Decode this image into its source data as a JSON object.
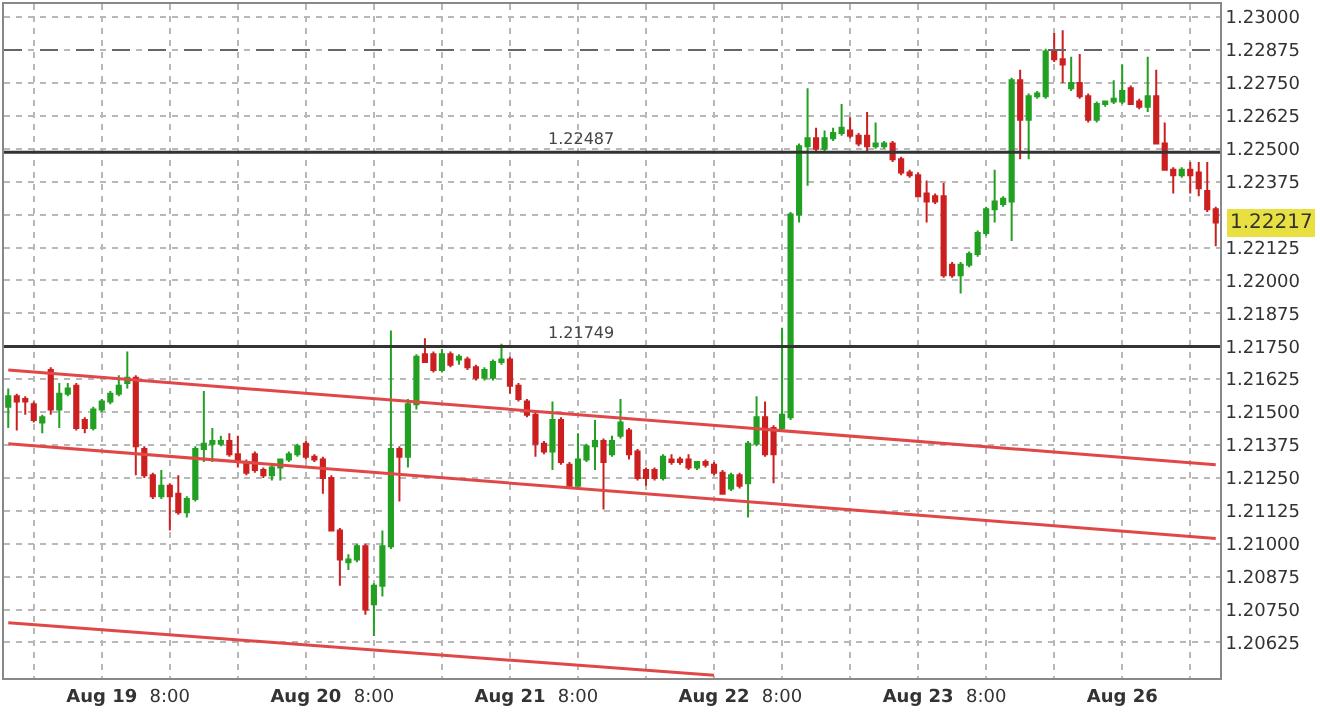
{
  "chart_data": {
    "type": "candlestick",
    "categories": [
      null,
      null,
      null,
      null,
      null,
      null,
      null,
      null,
      null,
      null,
      null,
      "Aug 19",
      null,
      null,
      null,
      null,
      null,
      null,
      null,
      "8:00",
      null,
      null,
      null,
      null,
      null,
      null,
      null,
      null,
      null,
      null,
      null,
      null,
      null,
      null,
      null,
      "Aug 20",
      null,
      null,
      null,
      null,
      null,
      null,
      null,
      "8:00",
      null,
      null,
      null,
      null,
      null,
      null,
      null,
      null,
      null,
      null,
      null,
      null,
      null,
      null,
      null,
      "Aug 21",
      null,
      null,
      null,
      null,
      null,
      null,
      null,
      "8:00",
      null,
      null,
      null,
      null,
      null,
      null,
      null,
      null,
      null,
      null,
      null,
      null,
      null,
      null,
      null,
      "Aug 22",
      null,
      null,
      null,
      null,
      null,
      null,
      null,
      "8:00",
      null,
      null,
      null,
      null,
      null,
      null,
      null,
      null,
      null,
      null,
      null,
      null,
      null,
      null,
      null,
      "Aug 23",
      null,
      null,
      null,
      null,
      null,
      null,
      null,
      "8:00",
      null,
      null,
      null,
      null,
      null,
      null,
      null,
      null,
      null,
      null,
      null,
      null,
      null,
      null,
      null,
      "Aug 26",
      null,
      null,
      null,
      null,
      null,
      null,
      null,
      null,
      null,
      null,
      null
    ],
    "ohlc": [
      [
        1.2152,
        1.2159,
        1.2144,
        1.2156
      ],
      [
        1.2156,
        1.2157,
        1.2143,
        1.2154
      ],
      [
        1.2155,
        1.2156,
        1.2149,
        1.2154
      ],
      [
        1.2153,
        1.2154,
        1.2146,
        1.2147
      ],
      [
        1.2146,
        1.2149,
        1.2142,
        1.2148
      ],
      [
        1.2166,
        1.2167,
        1.2149,
        1.2151
      ],
      [
        1.2151,
        1.2161,
        1.2144,
        1.2157
      ],
      [
        1.2157,
        1.2161,
        1.2156,
        1.2159
      ],
      [
        1.216,
        1.2161,
        1.2143,
        1.2144
      ],
      [
        1.2147,
        1.2148,
        1.2142,
        1.2144
      ],
      [
        1.2144,
        1.2152,
        1.2143,
        1.2151
      ],
      [
        1.2151,
        1.2155,
        1.215,
        1.2154
      ],
      [
        1.2154,
        1.2158,
        1.2153,
        1.2157
      ],
      [
        1.2157,
        1.2164,
        1.2156,
        1.216
      ],
      [
        1.2161,
        1.2173,
        1.2159,
        1.2163
      ],
      [
        1.2163,
        1.2164,
        1.2126,
        1.2137
      ],
      [
        1.2136,
        1.2137,
        1.2125,
        1.2126
      ],
      [
        1.2126,
        1.2127,
        1.2117,
        1.2118
      ],
      [
        1.2118,
        1.2128,
        1.2117,
        1.2122
      ],
      [
        1.2122,
        1.2123,
        1.2105,
        1.2118
      ],
      [
        1.2119,
        1.2126,
        1.2111,
        1.2112
      ],
      [
        1.2112,
        1.2118,
        1.211,
        1.2117
      ],
      [
        1.2117,
        1.2137,
        1.2116,
        1.2136
      ],
      [
        1.2136,
        1.2158,
        1.2131,
        1.2138
      ],
      [
        1.2138,
        1.2144,
        1.2131,
        1.2139
      ],
      [
        1.2138,
        1.2141,
        1.2137,
        1.2139
      ],
      [
        1.2139,
        1.2142,
        1.2133,
        1.2134
      ],
      [
        1.2134,
        1.2141,
        1.2129,
        1.2131
      ],
      [
        1.2131,
        1.2132,
        1.2126,
        1.2127
      ],
      [
        1.2134,
        1.2135,
        1.2127,
        1.2128
      ],
      [
        1.2128,
        1.2129,
        1.2125,
        1.2126
      ],
      [
        1.2126,
        1.213,
        1.2124,
        1.2129
      ],
      [
        1.2129,
        1.2132,
        1.2124,
        1.2132
      ],
      [
        1.2132,
        1.2135,
        1.2131,
        1.2134
      ],
      [
        1.2134,
        1.2138,
        1.2133,
        1.2137
      ],
      [
        1.2138,
        1.2139,
        1.2132,
        1.2133
      ],
      [
        1.2133,
        1.2134,
        1.2131,
        1.2132
      ],
      [
        1.2132,
        1.2133,
        1.2119,
        1.2125
      ],
      [
        1.2125,
        1.2126,
        1.2105,
        1.2105
      ],
      [
        1.2105,
        1.2106,
        1.2084,
        1.2094
      ],
      [
        1.2093,
        1.2096,
        1.209,
        1.2094
      ],
      [
        1.2094,
        1.21,
        1.2093,
        1.2099
      ],
      [
        1.2099,
        1.21,
        1.2073,
        1.2075
      ],
      [
        1.2077,
        1.2085,
        1.2065,
        1.2084
      ],
      [
        1.2084,
        1.2105,
        1.208,
        1.2099
      ],
      [
        1.2099,
        1.2181,
        1.2098,
        1.2136
      ],
      [
        1.2136,
        1.2137,
        1.2116,
        1.2133
      ],
      [
        1.2133,
        1.2155,
        1.2129,
        1.2153
      ],
      [
        1.2153,
        1.2172,
        1.2151,
        1.2171
      ],
      [
        1.2172,
        1.2178,
        1.2169,
        1.2169
      ],
      [
        1.2172,
        1.2173,
        1.2165,
        1.2166
      ],
      [
        1.2166,
        1.2174,
        1.2165,
        1.2172
      ],
      [
        1.2172,
        1.2173,
        1.2167,
        1.2168
      ],
      [
        1.217,
        1.2172,
        1.2168,
        1.2171
      ],
      [
        1.217,
        1.2171,
        1.2166,
        1.2167
      ],
      [
        1.2167,
        1.2168,
        1.2162,
        1.2163
      ],
      [
        1.2163,
        1.2167,
        1.2162,
        1.2166
      ],
      [
        1.2163,
        1.217,
        1.2162,
        1.2169
      ],
      [
        1.2169,
        1.2176,
        1.2168,
        1.217
      ],
      [
        1.217,
        1.2171,
        1.2157,
        1.216
      ],
      [
        1.216,
        1.2161,
        1.2154,
        1.2155
      ],
      [
        1.2154,
        1.2155,
        1.2148,
        1.2149
      ],
      [
        1.2149,
        1.215,
        1.2133,
        1.2138
      ],
      [
        1.2138,
        1.2139,
        1.2134,
        1.2135
      ],
      [
        1.2135,
        1.2154,
        1.2128,
        1.2147
      ],
      [
        1.2147,
        1.2148,
        1.213,
        1.2131
      ],
      [
        1.213,
        1.2131,
        1.2121,
        1.2122
      ],
      [
        1.2122,
        1.2142,
        1.2121,
        1.2132
      ],
      [
        1.2132,
        1.2138,
        1.2131,
        1.2137
      ],
      [
        1.2137,
        1.2147,
        1.2128,
        1.2139
      ],
      [
        1.2139,
        1.214,
        1.2113,
        1.2131
      ],
      [
        1.2134,
        1.2141,
        1.2133,
        1.2139
      ],
      [
        1.2141,
        1.2155,
        1.214,
        1.2146
      ],
      [
        1.2143,
        1.2144,
        1.2132,
        1.2134
      ],
      [
        1.2135,
        1.2136,
        1.2124,
        1.2125
      ],
      [
        1.2128,
        1.2129,
        1.2122,
        1.2125
      ],
      [
        1.2128,
        1.2129,
        1.2124,
        1.2125
      ],
      [
        1.2125,
        1.2134,
        1.2124,
        1.2133
      ],
      [
        1.2132,
        1.2134,
        1.213,
        1.2131
      ],
      [
        1.2132,
        1.2133,
        1.213,
        1.2131
      ],
      [
        1.2132,
        1.2134,
        1.2128,
        1.2129
      ],
      [
        1.2129,
        1.2131,
        1.2128,
        1.2131
      ],
      [
        1.2131,
        1.2132,
        1.2129,
        1.213
      ],
      [
        1.213,
        1.2131,
        1.2126,
        1.2127
      ],
      [
        1.2127,
        1.2128,
        1.2119,
        1.2119
      ],
      [
        1.2121,
        1.2127,
        1.212,
        1.2126
      ],
      [
        1.2126,
        1.2127,
        1.2121,
        1.2122
      ],
      [
        1.2123,
        1.2139,
        1.211,
        1.2138
      ],
      [
        1.2138,
        1.2156,
        1.2137,
        1.2148
      ],
      [
        1.2148,
        1.2154,
        1.2133,
        1.2134
      ],
      [
        1.2144,
        1.2145,
        1.2123,
        1.2134
      ],
      [
        1.2144,
        1.2182,
        1.2143,
        1.2149
      ],
      [
        1.2148,
        1.2226,
        1.2147,
        1.2225
      ],
      [
        1.2225,
        1.2252,
        1.2222,
        1.2251
      ],
      [
        1.2251,
        1.2273,
        1.2236,
        1.2254
      ],
      [
        1.2254,
        1.2258,
        1.2249,
        1.225
      ],
      [
        1.225,
        1.2257,
        1.2249,
        1.2254
      ],
      [
        1.2254,
        1.2258,
        1.2253,
        1.2256
      ],
      [
        1.2256,
        1.2267,
        1.2255,
        1.2258
      ],
      [
        1.2257,
        1.2262,
        1.2254,
        1.2255
      ],
      [
        1.2255,
        1.2256,
        1.2251,
        1.2252
      ],
      [
        1.2255,
        1.2264,
        1.2249,
        1.2251
      ],
      [
        1.2251,
        1.226,
        1.225,
        1.2252
      ],
      [
        1.2251,
        1.2253,
        1.225,
        1.2252
      ],
      [
        1.2252,
        1.2253,
        1.2245,
        1.2246
      ],
      [
        1.2246,
        1.2247,
        1.224,
        1.2241
      ],
      [
        1.2241,
        1.2242,
        1.2239,
        1.224
      ],
      [
        1.224,
        1.2241,
        1.2232,
        1.2232
      ],
      [
        1.2233,
        1.2238,
        1.2222,
        1.223
      ],
      [
        1.2232,
        1.2233,
        1.2229,
        1.223
      ],
      [
        1.2232,
        1.2237,
        1.2201,
        1.2202
      ],
      [
        1.2206,
        1.2207,
        1.2201,
        1.2202
      ],
      [
        1.2202,
        1.2207,
        1.2195,
        1.2206
      ],
      [
        1.2206,
        1.2211,
        1.2205,
        1.221
      ],
      [
        1.221,
        1.2219,
        1.2209,
        1.2218
      ],
      [
        1.2218,
        1.2228,
        1.2217,
        1.2227
      ],
      [
        1.2227,
        1.2242,
        1.2222,
        1.223
      ],
      [
        1.2229,
        1.2232,
        1.2228,
        1.2231
      ],
      [
        1.223,
        1.2277,
        1.2215,
        1.2276
      ],
      [
        1.2276,
        1.228,
        1.2246,
        1.2261
      ],
      [
        1.2261,
        1.2271,
        1.2246,
        1.227
      ],
      [
        1.227,
        1.2272,
        1.2269,
        1.2271
      ],
      [
        1.227,
        1.2288,
        1.2269,
        1.2287
      ],
      [
        1.2287,
        1.2294,
        1.2283,
        1.2284
      ],
      [
        1.2284,
        1.2295,
        1.2275,
        1.2282
      ],
      [
        1.2273,
        1.2285,
        1.2272,
        1.2275
      ],
      [
        1.2275,
        1.2286,
        1.2269,
        1.227
      ],
      [
        1.227,
        1.2271,
        1.226,
        1.2261
      ],
      [
        1.2261,
        1.2268,
        1.226,
        1.2267
      ],
      [
        1.2267,
        1.2268,
        1.2266,
        1.2268
      ],
      [
        1.2268,
        1.2276,
        1.2267,
        1.2269
      ],
      [
        1.2268,
        1.2282,
        1.2267,
        1.2272
      ],
      [
        1.2273,
        1.2274,
        1.2267,
        1.2267
      ],
      [
        1.2268,
        1.2269,
        1.2265,
        1.2266
      ],
      [
        1.2266,
        1.2285,
        1.2264,
        1.227
      ],
      [
        1.227,
        1.228,
        1.2252,
        1.2252
      ],
      [
        1.2252,
        1.226,
        1.2242,
        1.2242
      ],
      [
        1.2242,
        1.2243,
        1.2233,
        1.224
      ],
      [
        1.224,
        1.2243,
        1.2239,
        1.2242
      ],
      [
        1.2242,
        1.2245,
        1.2233,
        1.224
      ],
      [
        1.2241,
        1.2245,
        1.2232,
        1.2235
      ],
      [
        1.2234,
        1.2245,
        1.2226,
        1.2227
      ],
      [
        1.2227,
        1.2228,
        1.2213,
        1.2222
      ]
    ],
    "colors": [
      "#22a022",
      "#cc2020",
      "#cc2020",
      "#cc2020",
      "#22a022",
      "#cc2020",
      "#22a022",
      "#22a022",
      "#cc2020",
      "#cc2020",
      "#22a022",
      "#22a022",
      "#22a022",
      "#22a022",
      "#22a022",
      "#cc2020",
      "#cc2020",
      "#cc2020",
      "#22a022",
      "#cc2020",
      "#cc2020",
      "#22a022",
      "#22a022",
      "#22a022",
      "#22a022",
      "#22a022",
      "#cc2020",
      "#cc2020",
      "#cc2020",
      "#cc2020",
      "#cc2020",
      "#22a022",
      "#22a022",
      "#22a022",
      "#22a022",
      "#cc2020",
      "#cc2020",
      "#cc2020",
      "#cc2020",
      "#cc2020",
      "#22a022",
      "#22a022",
      "#cc2020",
      "#22a022",
      "#22a022",
      "#22a022",
      "#cc2020",
      "#22a022",
      "#22a022",
      "#cc2020",
      "#cc2020",
      "#22a022",
      "#cc2020",
      "#22a022",
      "#cc2020",
      "#cc2020",
      "#22a022",
      "#22a022",
      "#22a022",
      "#cc2020",
      "#cc2020",
      "#cc2020",
      "#cc2020",
      "#cc2020",
      "#22a022",
      "#cc2020",
      "#cc2020",
      "#22a022",
      "#22a022",
      "#22a022",
      "#cc2020",
      "#22a022",
      "#22a022",
      "#cc2020",
      "#cc2020",
      "#cc2020",
      "#cc2020",
      "#22a022",
      "#cc2020",
      "#cc2020",
      "#cc2020",
      "#22a022",
      "#cc2020",
      "#cc2020",
      "#cc2020",
      "#22a022",
      "#cc2020",
      "#22a022",
      "#22a022",
      "#cc2020",
      "#cc2020",
      "#22a022",
      "#22a022",
      "#22a022",
      "#22a022",
      "#cc2020",
      "#22a022",
      "#22a022",
      "#22a022",
      "#cc2020",
      "#cc2020",
      "#cc2020",
      "#22a022",
      "#22a022",
      "#cc2020",
      "#cc2020",
      "#cc2020",
      "#cc2020",
      "#cc2020",
      "#cc2020",
      "#cc2020",
      "#cc2020",
      "#22a022",
      "#22a022",
      "#22a022",
      "#22a022",
      "#22a022",
      "#22a022",
      "#22a022",
      "#cc2020",
      "#22a022",
      "#22a022",
      "#22a022",
      "#cc2020",
      "#cc2020",
      "#22a022",
      "#cc2020",
      "#cc2020",
      "#22a022",
      "#22a022",
      "#22a022",
      "#22a022",
      "#cc2020",
      "#cc2020",
      "#22a022",
      "#cc2020",
      "#cc2020",
      "#cc2020",
      "#22a022",
      "#cc2020",
      "#cc2020",
      "#cc2020",
      "#cc2020"
    ],
    "series": [
      {
        "type": "line",
        "color": "#e04848",
        "values": [
          1.2166,
          null,
          null,
          null,
          null,
          null,
          null,
          null,
          null,
          null,
          null,
          null,
          null,
          null,
          null,
          null,
          null,
          null,
          null,
          null,
          null,
          null,
          null,
          null,
          null,
          null,
          null,
          null,
          null,
          null,
          null,
          null,
          null,
          null,
          null,
          null,
          null,
          null,
          null,
          null,
          null,
          null,
          null,
          null,
          null,
          null,
          null,
          null,
          null,
          null,
          null,
          null,
          null,
          null,
          null,
          null,
          null,
          null,
          null,
          null,
          null,
          null,
          null,
          null,
          null,
          null,
          null,
          null,
          null,
          null,
          null,
          null,
          null,
          null,
          null,
          null,
          null,
          null,
          null,
          null,
          null,
          null,
          null,
          null,
          null,
          null,
          null,
          null,
          null,
          null,
          null,
          null,
          null,
          null,
          null,
          null,
          null,
          null,
          null,
          null,
          null,
          null,
          null,
          null,
          null,
          null,
          null,
          null,
          null,
          null,
          null,
          null,
          null,
          null,
          null,
          null,
          null,
          null,
          null,
          null,
          null,
          null,
          null,
          null,
          null,
          null,
          null,
          null,
          null,
          null,
          null,
          null,
          null,
          null,
          null,
          null,
          null,
          null,
          null,
          null,
          null,
          null,
          1.213
        ]
      },
      {
        "type": "line",
        "color": "#e04848",
        "values": [
          1.2138,
          null,
          null,
          null,
          null,
          null,
          null,
          null,
          null,
          null,
          null,
          null,
          null,
          null,
          null,
          null,
          null,
          null,
          null,
          null,
          null,
          null,
          null,
          null,
          null,
          null,
          null,
          null,
          null,
          null,
          null,
          null,
          null,
          null,
          null,
          null,
          null,
          null,
          null,
          null,
          null,
          null,
          null,
          null,
          null,
          null,
          null,
          null,
          null,
          null,
          null,
          null,
          null,
          null,
          null,
          null,
          null,
          null,
          null,
          null,
          null,
          null,
          null,
          null,
          null,
          null,
          null,
          null,
          null,
          null,
          null,
          null,
          null,
          null,
          null,
          null,
          null,
          null,
          null,
          null,
          null,
          null,
          null,
          null,
          null,
          null,
          null,
          null,
          null,
          null,
          null,
          null,
          null,
          null,
          null,
          null,
          null,
          null,
          null,
          null,
          null,
          null,
          null,
          null,
          null,
          null,
          null,
          null,
          null,
          null,
          null,
          null,
          null,
          null,
          null,
          null,
          null,
          null,
          null,
          null,
          null,
          null,
          null,
          null,
          null,
          null,
          null,
          null,
          null,
          null,
          null,
          null,
          null,
          null,
          null,
          null,
          null,
          null,
          null,
          null,
          null,
          null,
          1.2102
        ]
      },
      {
        "type": "line",
        "color": "#e04848",
        "values": [
          1.207,
          null,
          null,
          null,
          null,
          null,
          null,
          null,
          null,
          null,
          null,
          null,
          null,
          null,
          null,
          null,
          null,
          null,
          null,
          null,
          null,
          null,
          null,
          null,
          null,
          null,
          null,
          null,
          null,
          null,
          null,
          null,
          null,
          null,
          null,
          null,
          null,
          null,
          null,
          null,
          null,
          null,
          null,
          null,
          null,
          null,
          null,
          null,
          null,
          null,
          null,
          null,
          null,
          null,
          null,
          null,
          null,
          null,
          null,
          null,
          null,
          null,
          null,
          null,
          null,
          null,
          null,
          null,
          null,
          null,
          null,
          null,
          null,
          null,
          null,
          null,
          null,
          null,
          null,
          null,
          null,
          null,
          null,
          1.205,
          null,
          null,
          null,
          null,
          null,
          null,
          null,
          null,
          null,
          null,
          null,
          null,
          null,
          null,
          null,
          null,
          null,
          null,
          null,
          null,
          null,
          null,
          null,
          null,
          null,
          null,
          null,
          null,
          null,
          null,
          null,
          null,
          null,
          null,
          null,
          null,
          null,
          null,
          null,
          null,
          null,
          null,
          null,
          null,
          null,
          null,
          null,
          null,
          null,
          null,
          null,
          null,
          null,
          null,
          null,
          null,
          null,
          null,
          null
        ]
      }
    ],
    "ylim": [
      1.2049,
      1.2305
    ],
    "yticks": [
      {
        "value": 1.20625,
        "label": "1.20625"
      },
      {
        "value": 1.2075,
        "label": "1.20750"
      },
      {
        "value": 1.20875,
        "label": "1.20875"
      },
      {
        "value": 1.21,
        "label": "1.21000"
      },
      {
        "value": 1.21125,
        "label": "1.21125"
      },
      {
        "value": 1.2125,
        "label": "1.21250"
      },
      {
        "value": 1.21375,
        "label": "1.21375"
      },
      {
        "value": 1.215,
        "label": "1.21500"
      },
      {
        "value": 1.21625,
        "label": "1.21625"
      },
      {
        "value": 1.2175,
        "label": "1.21750"
      },
      {
        "value": 1.21875,
        "label": "1.21875"
      },
      {
        "value": 1.22,
        "label": "1.22000"
      },
      {
        "value": 1.22125,
        "label": "1.22125"
      },
      {
        "value": 1.2225,
        "label": null
      },
      {
        "value": 1.22375,
        "label": "1.22375"
      },
      {
        "value": 1.225,
        "label": "1.22500"
      },
      {
        "value": 1.22625,
        "label": "1.22625"
      },
      {
        "value": 1.2275,
        "label": "1.22750"
      },
      {
        "value": 1.22875,
        "label": "1.22875"
      },
      {
        "value": 1.23,
        "label": "1.23000"
      }
    ],
    "ref_lines": [
      {
        "axis": "y",
        "value": 1.22487,
        "label": "1.22487",
        "color": "#333333"
      },
      {
        "axis": "y",
        "value": 1.21749,
        "label": "1.21749",
        "color": "#333333"
      },
      {
        "axis": "y",
        "value": 1.22875,
        "color": "#666666",
        "line_style": "dashed"
      }
    ],
    "annotations": [
      "1.22217"
    ],
    "grid": true
  }
}
